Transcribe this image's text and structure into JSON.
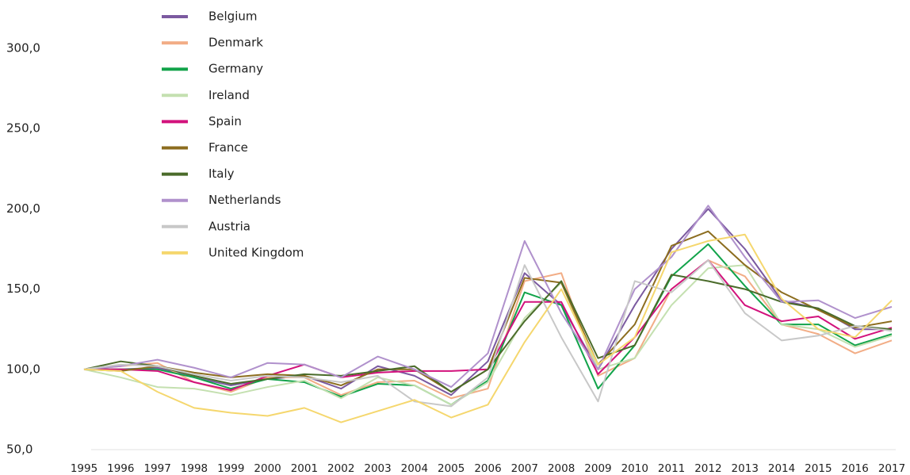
{
  "chart_data": {
    "type": "line",
    "x": [
      1995,
      1996,
      1997,
      1998,
      1999,
      2000,
      2001,
      2002,
      2003,
      2004,
      2005,
      2006,
      2007,
      2008,
      2009,
      2010,
      2011,
      2012,
      2013,
      2014,
      2015,
      2016,
      2017
    ],
    "ylim": [
      50,
      300
    ],
    "yticks": [
      {
        "value": 50,
        "label": "50,0"
      },
      {
        "value": 100,
        "label": "100,0"
      },
      {
        "value": 150,
        "label": "150,0"
      },
      {
        "value": 200,
        "label": "200,0"
      },
      {
        "value": 250,
        "label": "250,0"
      },
      {
        "value": 300,
        "label": "300,0"
      }
    ],
    "series": [
      {
        "name": "Belgium",
        "color": "#7b5aa0",
        "values": [
          100,
          100,
          101,
          95,
          90,
          94,
          96,
          88,
          102,
          96,
          84,
          105,
          160,
          140,
          100,
          140,
          175,
          200,
          175,
          143,
          138,
          125,
          125
        ]
      },
      {
        "name": "Denmark",
        "color": "#f2ad86",
        "values": [
          100,
          102,
          104,
          92,
          86,
          95,
          95,
          84,
          92,
          93,
          82,
          88,
          155,
          160,
          96,
          107,
          150,
          168,
          158,
          128,
          122,
          110,
          118
        ]
      },
      {
        "name": "Germany",
        "color": "#12a34a",
        "values": [
          100,
          100,
          100,
          95,
          88,
          94,
          92,
          83,
          91,
          90,
          78,
          93,
          148,
          140,
          88,
          115,
          158,
          178,
          152,
          128,
          128,
          115,
          122
        ]
      },
      {
        "name": "Ireland",
        "color": "#c4e0b0",
        "values": [
          100,
          95,
          89,
          88,
          84,
          89,
          93,
          82,
          95,
          90,
          78,
          92,
          132,
          154,
          100,
          107,
          140,
          163,
          165,
          128,
          125,
          114,
          121
        ]
      },
      {
        "name": "Spain",
        "color": "#d2127c",
        "values": [
          100,
          100,
          99,
          92,
          87,
          96,
          103,
          95,
          98,
          99,
          99,
          100,
          142,
          142,
          97,
          120,
          150,
          168,
          140,
          130,
          133,
          119,
          126
        ]
      },
      {
        "name": "France",
        "color": "#8c6d1f",
        "values": [
          100,
          99,
          102,
          98,
          95,
          97,
          96,
          90,
          100,
          100,
          86,
          100,
          157,
          154,
          103,
          128,
          177,
          186,
          165,
          148,
          137,
          126,
          130
        ]
      },
      {
        "name": "Italy",
        "color": "#4a6b2a",
        "values": [
          100,
          105,
          102,
          96,
          91,
          94,
          97,
          96,
          99,
          102,
          86,
          100,
          130,
          155,
          107,
          115,
          159,
          155,
          150,
          142,
          138,
          127,
          125
        ]
      },
      {
        "name": "Netherlands",
        "color": "#b091cc",
        "values": [
          100,
          102,
          106,
          101,
          95,
          104,
          103,
          95,
          108,
          100,
          89,
          110,
          180,
          135,
          100,
          150,
          170,
          202,
          170,
          142,
          143,
          132,
          139
        ]
      },
      {
        "name": "Austria",
        "color": "#c8c8c8",
        "values": [
          100,
          103,
          102,
          97,
          93,
          96,
          95,
          92,
          96,
          80,
          77,
          95,
          165,
          120,
          80,
          155,
          148,
          168,
          135,
          118,
          121,
          127,
          124
        ]
      },
      {
        "name": "United Kingdom",
        "color": "#f5d76e",
        "values": [
          100,
          99,
          86,
          76,
          73,
          71,
          76,
          67,
          74,
          81,
          70,
          78,
          117,
          150,
          103,
          120,
          173,
          180,
          184,
          144,
          125,
          120,
          143
        ]
      }
    ]
  }
}
